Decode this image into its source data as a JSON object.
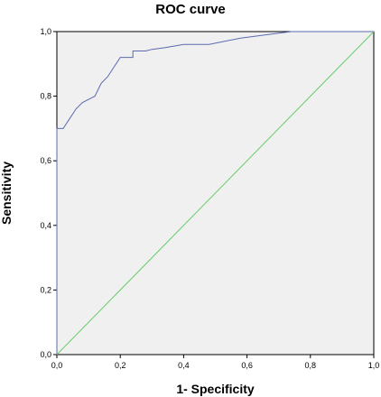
{
  "chart_data": {
    "type": "line",
    "title": "ROC curve",
    "xlabel": "1- Specificity",
    "ylabel": "Sensitivity",
    "xlim": [
      0,
      1
    ],
    "ylim": [
      0,
      1
    ],
    "x_ticks": [
      0,
      0.2,
      0.4,
      0.6,
      0.8,
      1.0
    ],
    "y_ticks": [
      0,
      0.2,
      0.4,
      0.6,
      0.8,
      1.0
    ],
    "x_tick_labels": [
      "0,0",
      "0,2",
      "0,4",
      "0,6",
      "0,8",
      "1,0"
    ],
    "y_tick_labels": [
      "0,0",
      "0,2",
      "0,4",
      "0,6",
      "0,8",
      "1,0"
    ],
    "grid": false,
    "plot_background": "#f0f0f0",
    "series": [
      {
        "color": "#5a6ab0",
        "x": [
          0,
          0,
          0.02,
          0.04,
          0.06,
          0.08,
          0.1,
          0.12,
          0.14,
          0.16,
          0.18,
          0.2,
          0.22,
          0.24,
          0.24,
          0.26,
          0.28,
          0.3,
          0.34,
          0.4,
          0.48,
          0.58,
          0.7,
          0.74,
          0.8,
          1.0
        ],
        "y": [
          0,
          0.7,
          0.7,
          0.73,
          0.76,
          0.78,
          0.79,
          0.8,
          0.84,
          0.86,
          0.89,
          0.92,
          0.92,
          0.92,
          0.94,
          0.94,
          0.94,
          0.945,
          0.95,
          0.96,
          0.96,
          0.98,
          0.995,
          1.0,
          1.0,
          1.0
        ]
      },
      {
        "color": "#66cc66",
        "x": [
          0,
          1
        ],
        "y": [
          0,
          1
        ]
      }
    ]
  }
}
